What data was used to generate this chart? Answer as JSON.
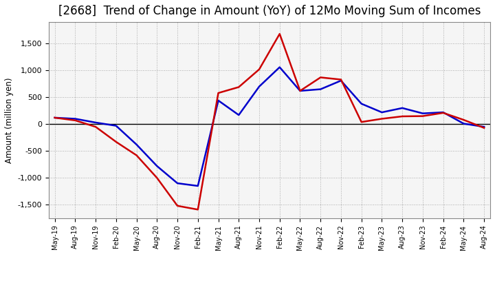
{
  "title": "[2668]  Trend of Change in Amount (YoY) of 12Mo Moving Sum of Incomes",
  "ylabel": "Amount (million yen)",
  "title_fontsize": 12,
  "background_color": "#ffffff",
  "plot_bg_color": "#f5f5f5",
  "grid_color": "#aaaaaa",
  "ordinary_income_color": "#0000cc",
  "net_income_color": "#cc0000",
  "ylim": [
    -1750,
    1900
  ],
  "yticks": [
    -1500,
    -1000,
    -500,
    0,
    500,
    1000,
    1500
  ],
  "ordinary_income": [
    120,
    100,
    30,
    -30,
    -380,
    -780,
    -1100,
    -1150,
    440,
    170,
    700,
    1060,
    620,
    650,
    810,
    380,
    220,
    300,
    200,
    220,
    10,
    -50
  ],
  "net_income": [
    120,
    70,
    -50,
    -330,
    -580,
    -1000,
    -1520,
    -1590,
    580,
    690,
    1020,
    1680,
    620,
    870,
    830,
    40,
    100,
    145,
    150,
    210,
    80,
    -70
  ],
  "xtick_labels": [
    "May-19",
    "Aug-19",
    "Nov-19",
    "Feb-20",
    "May-20",
    "Aug-20",
    "Nov-20",
    "Feb-21",
    "May-21",
    "Aug-21",
    "Nov-21",
    "Feb-22",
    "May-22",
    "Aug-22",
    "Nov-22",
    "Feb-23",
    "May-23",
    "Aug-23",
    "Nov-23",
    "Feb-24",
    "May-24",
    "Aug-24"
  ]
}
